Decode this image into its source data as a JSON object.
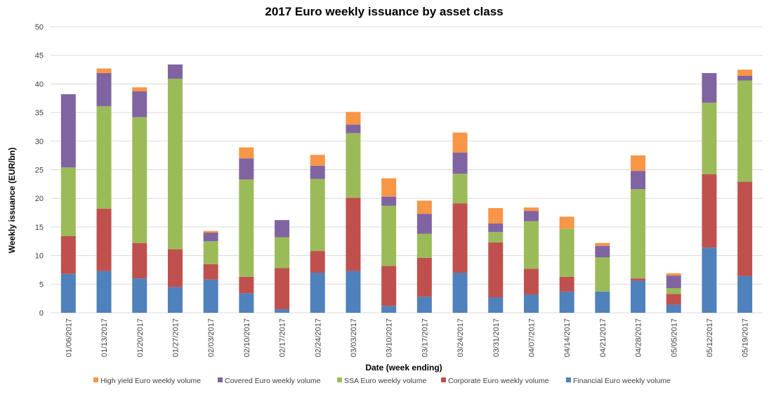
{
  "chart_data": {
    "type": "bar",
    "stacked": true,
    "title": "2017 Euro weekly issuance by asset class",
    "xlabel": "Date (week ending)",
    "ylabel": "Weekly issuance  (EUR/bn)",
    "ylim": [
      0,
      50
    ],
    "yticks": [
      0,
      5,
      10,
      15,
      20,
      25,
      30,
      35,
      40,
      45,
      50
    ],
    "grid": true,
    "legend_position": "bottom",
    "categories": [
      "01/06/2017",
      "01/13/2017",
      "01/20/2017",
      "01/27/2017",
      "02/03/2017",
      "02/10/2017",
      "02/17/2017",
      "02/24/2017",
      "03/03/2017",
      "03/10/2017",
      "03/17/2017",
      "03/24/2017",
      "03/31/2017",
      "04/07/2017",
      "04/14/2017",
      "04/21/2017",
      "04/28/2017",
      "05/05/2017",
      "05/12/2017",
      "05/19/2017"
    ],
    "series": [
      {
        "name": "Financial Euro weekly volume",
        "color": "#4f81bd",
        "values": [
          6.8,
          7.3,
          6.0,
          4.5,
          5.8,
          3.4,
          0.6,
          7.0,
          7.3,
          1.2,
          2.8,
          7.0,
          2.7,
          3.2,
          3.7,
          3.7,
          5.6,
          1.4,
          11.4,
          6.4
        ]
      },
      {
        "name": "Corporate Euro weekly volume",
        "color": "#c0504d",
        "values": [
          6.6,
          10.9,
          6.2,
          6.6,
          2.7,
          2.9,
          7.2,
          3.8,
          12.8,
          7.0,
          6.8,
          12.1,
          9.6,
          4.5,
          2.6,
          0.0,
          0.4,
          1.9,
          12.8,
          16.5
        ]
      },
      {
        "name": "SSA Euro weekly volume",
        "color": "#9bbb59",
        "values": [
          12.0,
          17.9,
          22.0,
          29.8,
          4.0,
          17.0,
          5.4,
          12.6,
          11.3,
          10.5,
          4.2,
          5.2,
          1.8,
          8.3,
          8.4,
          6.0,
          15.6,
          1.0,
          12.5,
          17.7
        ]
      },
      {
        "name": "Covered Euro weekly volume",
        "color": "#8064a2",
        "values": [
          12.8,
          5.8,
          4.5,
          2.5,
          1.5,
          3.7,
          3.0,
          2.3,
          1.5,
          1.6,
          3.5,
          3.7,
          1.5,
          1.8,
          0.0,
          2.0,
          3.2,
          2.2,
          5.2,
          0.8
        ]
      },
      {
        "name": "High yield Euro weekly volume",
        "color": "#f79646",
        "values": [
          0.0,
          0.8,
          0.7,
          0.0,
          0.3,
          1.9,
          0.0,
          1.9,
          2.2,
          3.2,
          2.3,
          3.5,
          2.7,
          0.6,
          2.1,
          0.5,
          2.7,
          0.4,
          0.0,
          1.1
        ]
      }
    ],
    "legend_order": [
      "High yield Euro weekly volume",
      "Covered Euro weekly volume",
      "SSA Euro weekly volume",
      "Corporate Euro weekly volume",
      "Financial Euro weekly volume"
    ]
  }
}
